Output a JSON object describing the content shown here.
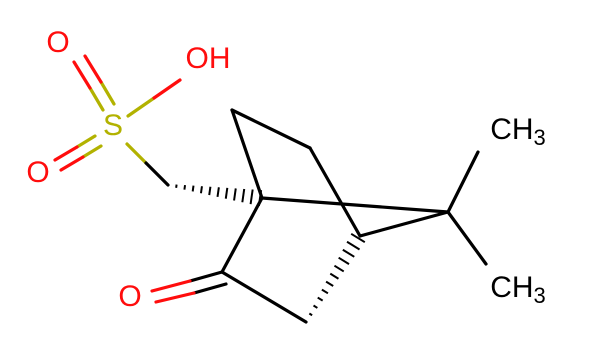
{
  "molecule": {
    "atoms": [
      {
        "label": "O"
      },
      {
        "label": "OH"
      },
      {
        "label": "S"
      },
      {
        "label": "O"
      },
      {
        "label": "O"
      },
      {
        "label": "CH",
        "sub": "3"
      },
      {
        "label": "CH",
        "sub": "3"
      }
    ]
  }
}
